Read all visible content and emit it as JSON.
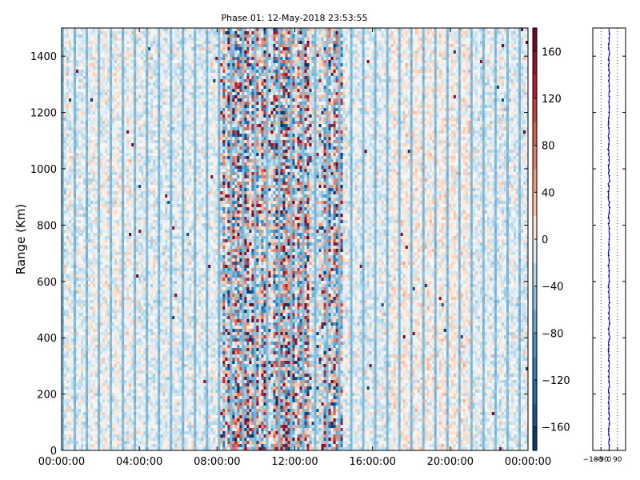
{
  "chart_data": [
    {
      "type": "heatmap",
      "title": "Phase 01: 12-May-2018 23:53:55",
      "ylabel": "Range (Km)",
      "xlabel": "",
      "x_tick_labels": [
        "00:00:00",
        "04:00:00",
        "08:00:00",
        "12:00:00",
        "16:00:00",
        "20:00:00",
        "00:00:00"
      ],
      "x_range_hours": [
        0,
        24
      ],
      "y_ticks": [
        0,
        200,
        400,
        600,
        800,
        1000,
        1200,
        1400
      ],
      "ylim": [
        0,
        1500
      ],
      "colorbar": {
        "colormap": "diverging red-white-blue (RdBu_r)",
        "range": [
          -180,
          180
        ],
        "tick_values": [
          160,
          120,
          80,
          40,
          0,
          -40,
          -80,
          -120,
          -160
        ],
        "tick_labels": [
          "160",
          "120",
          "80",
          "40",
          "0",
          "−40",
          "−80",
          "−120",
          "−160"
        ]
      },
      "description_values": {
        "background_phase_approx": [
          -40,
          40
        ],
        "high_variance_window_hours": [
          8,
          14.5
        ]
      },
      "colors": {
        "positive": "#67001f",
        "neutral": "#f7f7f7",
        "negative": "#053061"
      }
    },
    {
      "type": "line",
      "x_tick_labels": [
        "−180",
        "−90",
        "0",
        "90"
      ],
      "xlim": [
        -180,
        180
      ],
      "ylim": [
        0,
        1500
      ],
      "series_color": "#0000cc",
      "grid": "vertical dotted"
    }
  ]
}
